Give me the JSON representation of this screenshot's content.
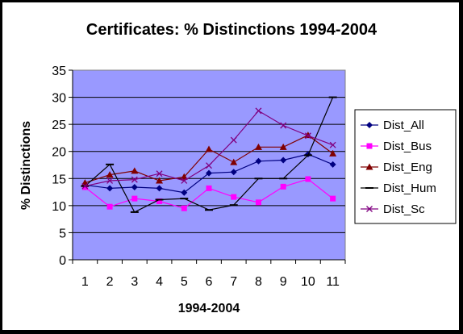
{
  "chart_data": {
    "type": "line",
    "title": "Certificates: % Distinctions 1994-2004",
    "xlabel": "1994-2004",
    "ylabel": "% Distinctions",
    "categories": [
      "1",
      "2",
      "3",
      "4",
      "5",
      "6",
      "7",
      "8",
      "9",
      "10",
      "11"
    ],
    "ylim": [
      0,
      35
    ],
    "yticks": [
      "0",
      "5",
      "10",
      "15",
      "20",
      "25",
      "30",
      "35"
    ],
    "grid": true,
    "legend_position": "right",
    "plot_background": "#9999ff",
    "series": [
      {
        "name": "Dist_All",
        "color": "#000080",
        "marker": "diamond",
        "values": [
          13.8,
          13.2,
          13.4,
          13.2,
          12.4,
          16.0,
          16.2,
          18.2,
          18.4,
          19.5,
          17.6
        ]
      },
      {
        "name": "Dist_Bus",
        "color": "#ff00ff",
        "marker": "square",
        "values": [
          13.4,
          9.8,
          11.3,
          10.8,
          9.5,
          13.2,
          11.6,
          10.6,
          13.5,
          14.9,
          11.3
        ]
      },
      {
        "name": "Dist_Eng",
        "color": "#800000",
        "marker": "triangle",
        "values": [
          14.2,
          15.7,
          16.4,
          14.6,
          15.3,
          20.4,
          18.0,
          20.8,
          20.8,
          23.0,
          19.6
        ]
      },
      {
        "name": "Dist_Hum",
        "color": "#000000",
        "marker": "dash",
        "values": [
          13.6,
          17.6,
          8.8,
          11.1,
          11.3,
          9.2,
          10.1,
          15.0,
          15.0,
          19.3,
          30.0
        ]
      },
      {
        "name": "Dist_Sc",
        "color": "#800080",
        "marker": "x",
        "values": [
          13.6,
          14.6,
          14.8,
          15.9,
          14.6,
          17.4,
          22.1,
          27.5,
          24.8,
          22.9,
          21.2
        ]
      }
    ]
  }
}
